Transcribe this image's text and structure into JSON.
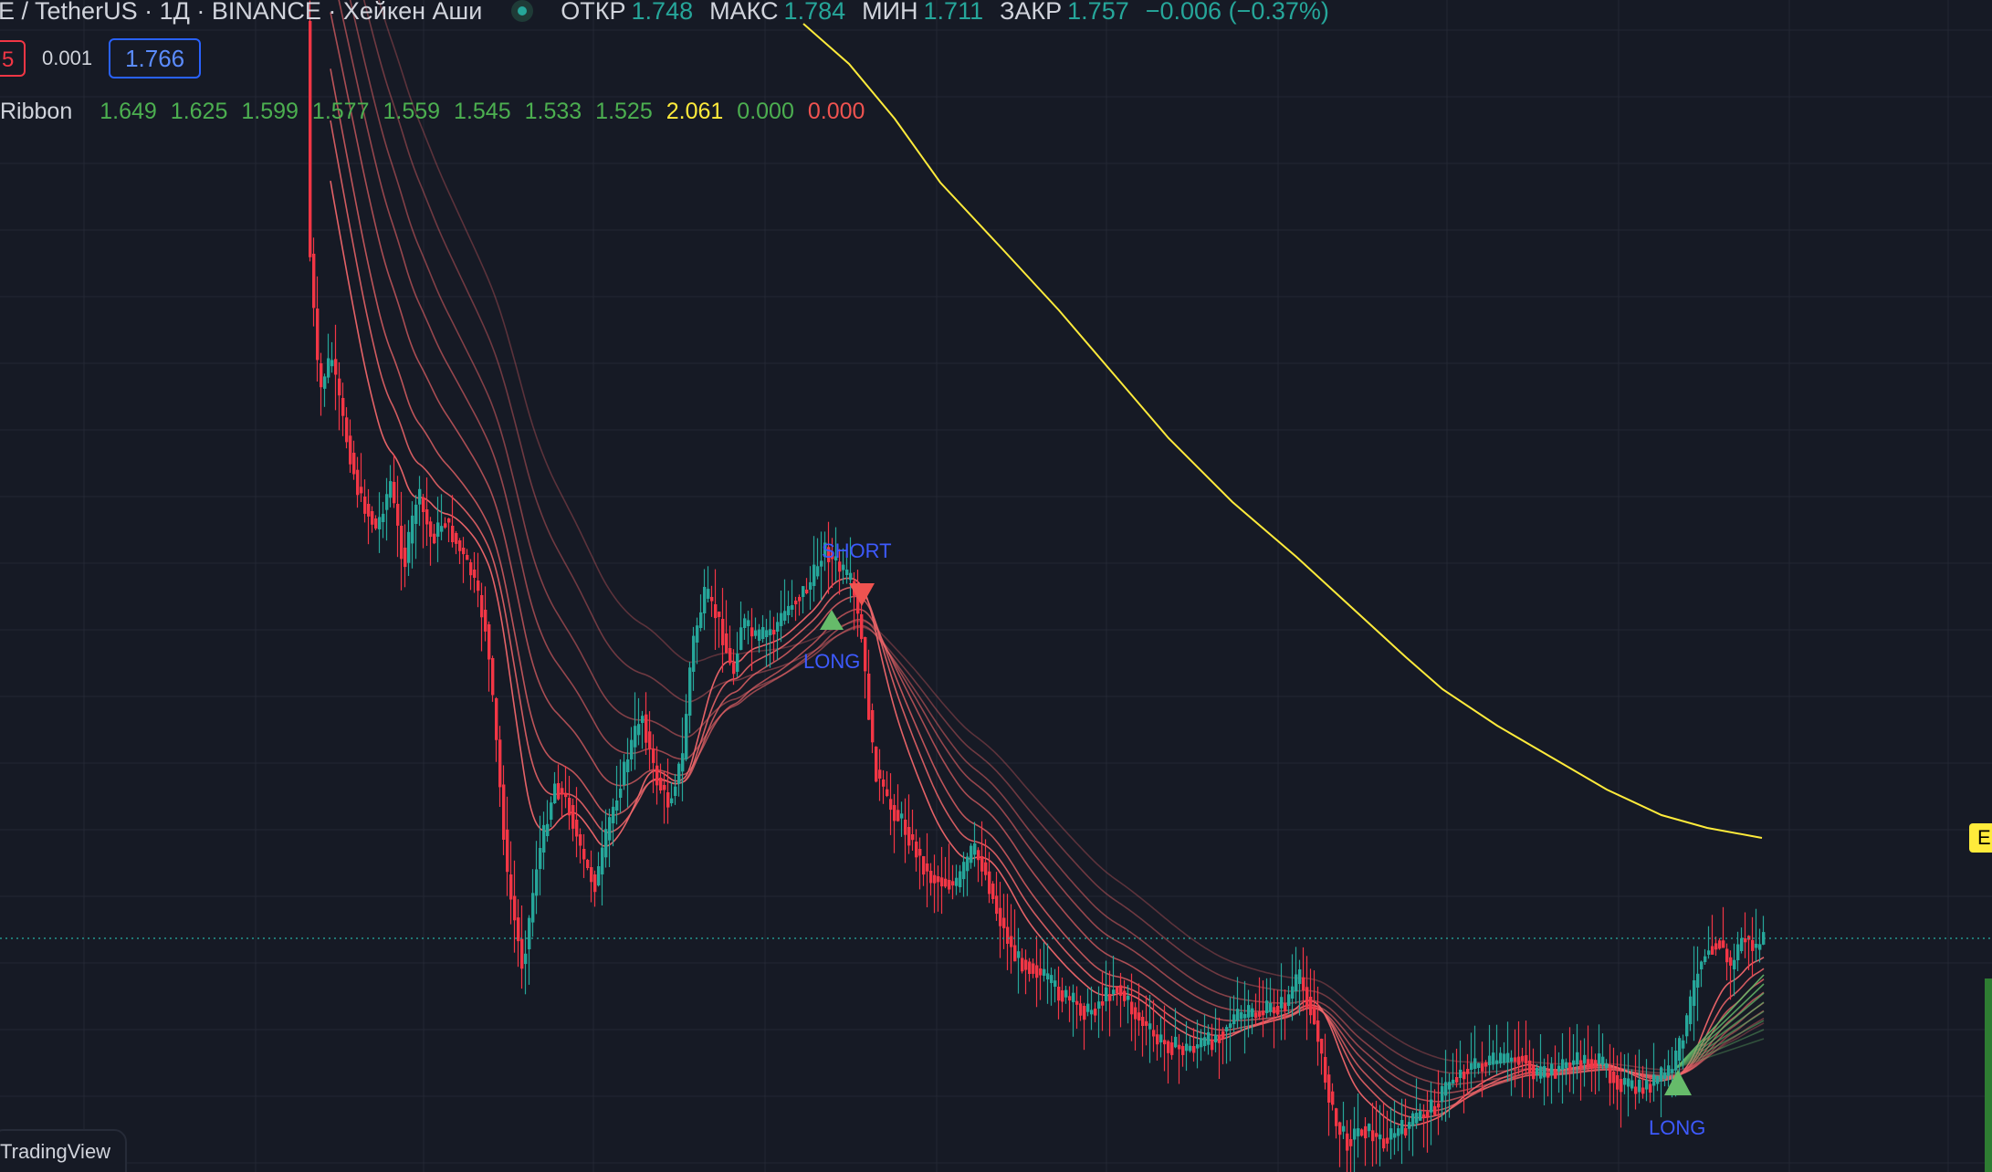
{
  "header": {
    "symbol_title": "E / TetherUS · 1Д · BINANCE · Хейкен Аши",
    "ohlc": [
      {
        "label": "ОТКР",
        "value": "1.748"
      },
      {
        "label": "МАКС",
        "value": "1.784"
      },
      {
        "label": "МИН",
        "value": "1.711"
      },
      {
        "label": "ЗАКР",
        "value": "1.757"
      }
    ],
    "change": "−0.006 (−0.37%)"
  },
  "trade": {
    "sell_value": "5",
    "spread": "0.001",
    "buy_value": "1.766"
  },
  "ribbon": {
    "name": "Ribbon",
    "values": [
      {
        "v": "1.649",
        "color": "#4caf50"
      },
      {
        "v": "1.625",
        "color": "#4caf50"
      },
      {
        "v": "1.599",
        "color": "#4caf50"
      },
      {
        "v": "1.577",
        "color": "#4caf50"
      },
      {
        "v": "1.559",
        "color": "#4caf50"
      },
      {
        "v": "1.545",
        "color": "#4caf50"
      },
      {
        "v": "1.533",
        "color": "#4caf50"
      },
      {
        "v": "1.525",
        "color": "#4caf50"
      },
      {
        "v": "2.061",
        "color": "#ffeb3b"
      },
      {
        "v": "0.000",
        "color": "#4caf50"
      },
      {
        "v": "0.000",
        "color": "#ef5350"
      }
    ]
  },
  "signals": {
    "short_label": "SHORT",
    "long_label": "LONG"
  },
  "price_tag": "E",
  "watermark": "TradingView",
  "colors": {
    "background": "#161a25",
    "up": "#26a69a",
    "down": "#f23645",
    "ema_yellow": "#ffeb3b",
    "signal_text": "#3d5afe",
    "long_triangle": "#66bb6a",
    "short_triangle": "#ef5350"
  }
}
